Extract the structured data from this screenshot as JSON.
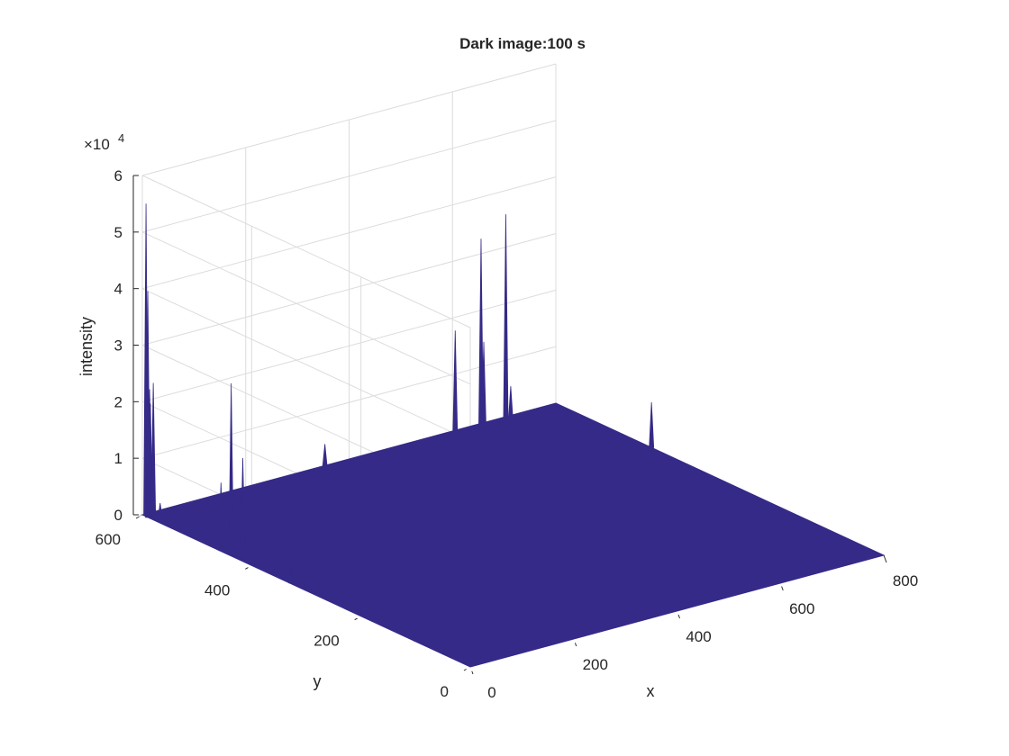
{
  "chart_data": {
    "type": "surface",
    "title": "Dark image:100 s",
    "xlabel": "x",
    "ylabel": "y",
    "zlabel": "intensity",
    "z_exponent_label": "×10",
    "z_exponent_power": "4",
    "xlim": [
      0,
      800
    ],
    "ylim": [
      0,
      600
    ],
    "zlim": [
      0,
      60000
    ],
    "x_ticks": [
      0,
      200,
      400,
      600,
      800
    ],
    "x_tick_labels": [
      "0",
      "200",
      "400",
      "600",
      "800"
    ],
    "y_ticks": [
      0,
      200,
      400,
      600
    ],
    "y_tick_labels": [
      "0",
      "200",
      "400",
      "600"
    ],
    "z_ticks": [
      0,
      10000,
      20000,
      30000,
      40000,
      50000,
      60000
    ],
    "z_tick_labels": [
      "0",
      "1",
      "2",
      "3",
      "4",
      "5",
      "6"
    ],
    "grid": true,
    "surface_color": "#352a87",
    "baseline_intensity": 0,
    "spikes": [
      {
        "x": 5,
        "y": 598,
        "z": 55000
      },
      {
        "x": 0,
        "y": 590,
        "z": 40000
      },
      {
        "x": 5,
        "y": 590,
        "z": 20000
      },
      {
        "x": 12,
        "y": 598,
        "z": 22000
      },
      {
        "x": 18,
        "y": 597,
        "z": 23000
      },
      {
        "x": 8,
        "y": 575,
        "z": 3000
      },
      {
        "x": 650,
        "y": 595,
        "z": 33000
      },
      {
        "x": 600,
        "y": 595,
        "z": 18000
      },
      {
        "x": 650,
        "y": 590,
        "z": 15000
      },
      {
        "x": 700,
        "y": 597,
        "z": 36000
      },
      {
        "x": 700,
        "y": 588,
        "z": 6000
      },
      {
        "x": 350,
        "y": 597,
        "z": 4000
      },
      {
        "x": 8,
        "y": 445,
        "z": 30000
      },
      {
        "x": 4,
        "y": 420,
        "z": 18000
      },
      {
        "x": 2,
        "y": 458,
        "z": 12000
      },
      {
        "x": 3,
        "y": 300,
        "z": 5000
      },
      {
        "x": 2,
        "y": 100,
        "z": 4000
      },
      {
        "x": 2,
        "y": 330,
        "z": 3000
      },
      {
        "x": 800,
        "y": 425,
        "z": 8000
      }
    ]
  }
}
